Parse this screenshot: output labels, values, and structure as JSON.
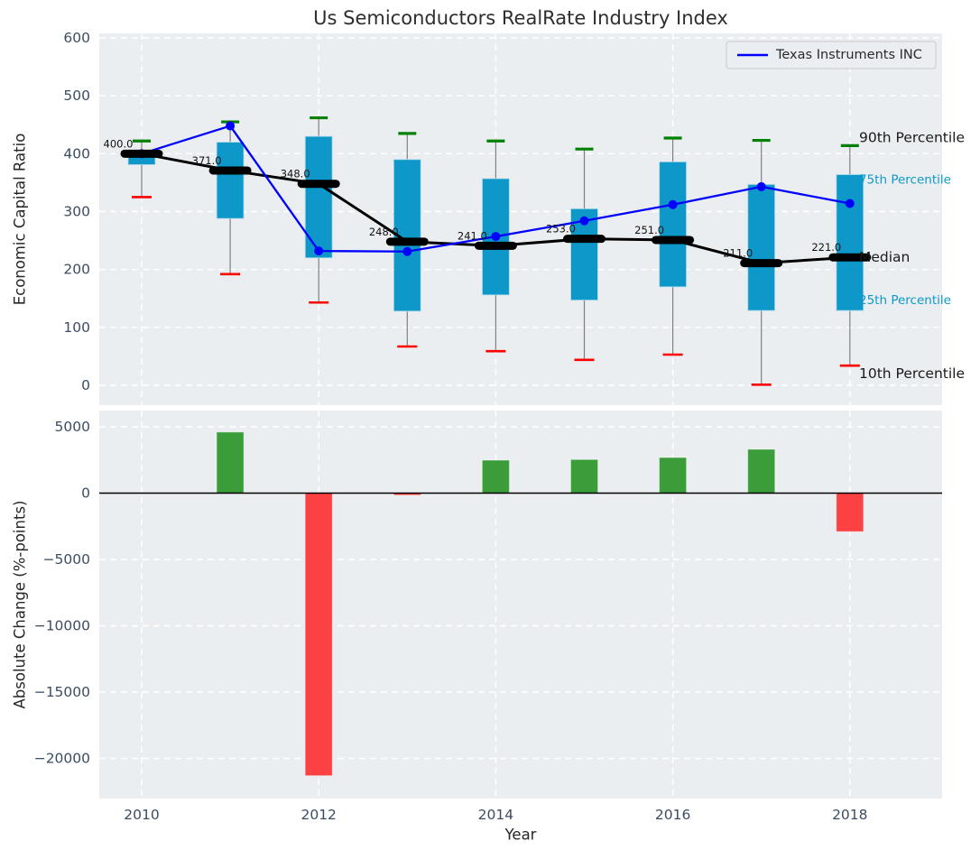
{
  "title": "Us Semiconductors RealRate Industry Index",
  "legend": {
    "label": "Texas Instruments INC",
    "position": "upper right"
  },
  "xlabel": "Year",
  "xticks": [
    2010,
    2012,
    2014,
    2016,
    2018
  ],
  "top_panel": {
    "ylabel": "Economic Capital Ratio",
    "yticks": [
      0,
      100,
      200,
      300,
      400,
      500,
      600
    ],
    "right_labels": {
      "p90": "90th Percentile",
      "p75": "75th Percentile",
      "median": "Median",
      "p25": "25th Percentile",
      "p10": "10th Percentile"
    }
  },
  "bottom_panel": {
    "ylabel": "Absolute Change (%-points)",
    "yticks": [
      5000,
      0,
      -5000,
      -10000,
      -15000,
      -20000
    ]
  },
  "colors": {
    "box_fill": "#0d98c9",
    "box_edge": "#bfe0ee",
    "whisker": "#7f7f7f",
    "cap_high_green": "#008000",
    "cap_low_red": "#fe0000",
    "median_black": "#000000",
    "ti_line_blue": "#0000ff",
    "bar_positive_green": "#3a9d3a",
    "bar_negative_red": "#fb4141",
    "axes_background": "#ebeef0",
    "grid_white": "#ffffff",
    "tick_label": "#3b4d63",
    "axis_label": "#262626",
    "pct_label_cyan": "#0d98c9",
    "legend_bg": "#eaecf2",
    "legend_border": "#c9c9c9"
  },
  "chart_data": [
    {
      "type": "boxplot",
      "panel": "top",
      "title": "Us Semiconductors RealRate Industry Index",
      "ylabel": "Economic Capital Ratio",
      "ylim": [
        -35,
        610
      ],
      "yticks": [
        0,
        100,
        200,
        300,
        400,
        500,
        600
      ],
      "grid": "white dashed, on",
      "legend_entries": [
        "Texas Instruments INC"
      ],
      "x": [
        2010,
        2011,
        2012,
        2013,
        2014,
        2015,
        2016,
        2017,
        2018
      ],
      "series": [
        {
          "name": "90th Percentile",
          "values": [
            422,
            455,
            462,
            435,
            422,
            408,
            427,
            423,
            414
          ]
        },
        {
          "name": "75th Percentile",
          "values": [
            402,
            420,
            430,
            390,
            357,
            305,
            386,
            347,
            364
          ]
        },
        {
          "name": "Median",
          "values": [
            400,
            371,
            348,
            248,
            241,
            253,
            251,
            211,
            221
          ]
        },
        {
          "name": "25th Percentile",
          "values": [
            381,
            288,
            220,
            128,
            156,
            147,
            170,
            129,
            129
          ]
        },
        {
          "name": "10th Percentile",
          "values": [
            325,
            192,
            143,
            67,
            59,
            44,
            53,
            1,
            34
          ]
        },
        {
          "name": "Texas Instruments INC",
          "values": [
            400,
            448,
            232,
            231,
            257,
            284,
            312,
            343,
            314
          ]
        }
      ],
      "median_labels": [
        "400.0",
        "371.0",
        "348.0",
        "248.0",
        "241.0",
        "253.0",
        "251.0",
        "211.0",
        "221.0"
      ]
    },
    {
      "type": "bar",
      "panel": "bottom",
      "ylabel": "Absolute Change (%-points)",
      "xlabel": "Year",
      "ylim": [
        -23100,
        6200
      ],
      "yticks": [
        5000,
        0,
        -5000,
        -10000,
        -15000,
        -20000
      ],
      "grid": "white dashed, on",
      "x": [
        2010,
        2011,
        2012,
        2013,
        2014,
        2015,
        2016,
        2017,
        2018
      ],
      "values": [
        null,
        4600,
        -21300,
        -150,
        2480,
        2530,
        2680,
        3300,
        -2900
      ],
      "color_rule": "green if positive, red if negative",
      "zero_line": true
    }
  ]
}
